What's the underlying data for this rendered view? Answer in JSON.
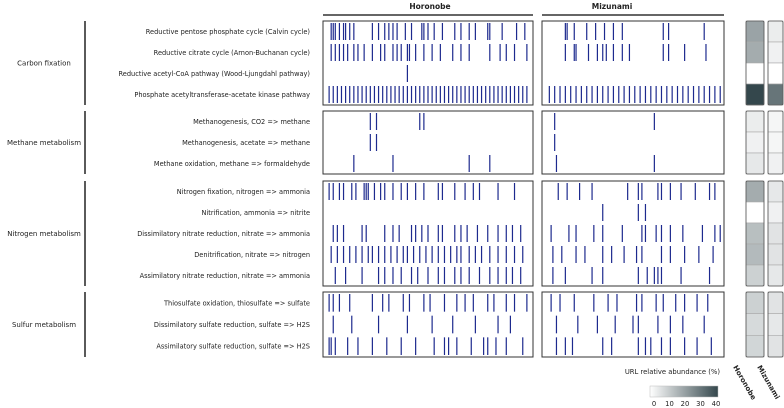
{
  "chart_data": {
    "type": "heatmap",
    "sites": [
      "Horonobe",
      "Mizunami"
    ],
    "groups": [
      {
        "name": "Carbon fixation",
        "rows": [
          {
            "label": "Reductive pentose phosphate cycle (Calvin cycle)",
            "Horonobe": [
              3,
              4,
              5,
              7,
              9,
              10,
              12,
              14,
              23,
              26,
              29,
              31,
              33,
              35,
              39,
              42,
              47,
              48,
              50,
              53,
              57,
              63,
              66,
              70,
              73,
              79,
              80,
              86,
              93,
              97
            ],
            "Mizunami": [
              12,
              13,
              17,
              24,
              29,
              34,
              39,
              44,
              67,
              70,
              90
            ]
          },
          {
            "label": "Reductive citrate cycle (Arnon-Buchanan cycle)",
            "Horonobe": [
              3,
              5,
              7,
              9,
              11,
              14,
              16,
              19,
              23,
              27,
              29,
              33,
              35,
              37,
              40,
              41,
              44,
              48,
              52,
              56,
              62,
              66,
              70,
              80,
              85,
              88,
              92,
              98
            ],
            "Mizunami": [
              12,
              17,
              18,
              25,
              30,
              33,
              35,
              39,
              44,
              48,
              67,
              70,
              79,
              91
            ]
          },
          {
            "label": "Reductive acetyl-CoA pathway (Wood-Ljungdahl pathway)",
            "Horonobe": [
              40
            ],
            "Mizunami": []
          },
          {
            "label": "Phosphate acetyltransferase-acetate kinase pathway",
            "Horonobe": [
              2,
              4,
              6,
              8,
              10,
              12,
              14,
              16,
              18,
              20,
              22,
              24,
              26,
              28,
              30,
              32,
              34,
              36,
              38,
              40,
              42,
              44,
              46,
              48,
              50,
              52,
              54,
              56,
              58,
              60,
              62,
              64,
              66,
              68,
              70,
              72,
              74,
              76,
              78,
              80,
              82,
              84,
              86,
              88,
              90,
              92,
              94,
              96,
              98
            ],
            "Mizunami": [
              3,
              6,
              9,
              12,
              15,
              18,
              21,
              24,
              27,
              30,
              33,
              36,
              39,
              42,
              45,
              48,
              51,
              54,
              57,
              60,
              63,
              66,
              69,
              72,
              75,
              78,
              81,
              84,
              87,
              90,
              93,
              96,
              99
            ]
          }
        ]
      },
      {
        "name": "Methane metabolism",
        "rows": [
          {
            "label": "Methanogenesis, CO2 => methane",
            "Horonobe": [
              22,
              25,
              46,
              48
            ],
            "Mizunami": [
              6,
              62
            ]
          },
          {
            "label": "Methanogenesis, acetate => methane",
            "Horonobe": [
              22,
              25
            ],
            "Mizunami": [
              6
            ]
          },
          {
            "label": "Methane oxidation, methane => formaldehyde",
            "Horonobe": [
              14,
              33,
              70,
              80
            ],
            "Mizunami": [
              7,
              62
            ]
          }
        ]
      },
      {
        "name": "Nitrogen metabolism",
        "rows": [
          {
            "label": "Nitrogen fixation, nitrogen => ammonia",
            "Horonobe": [
              2,
              4,
              7,
              9,
              13,
              15,
              19,
              20,
              21,
              24,
              27,
              29,
              33,
              37,
              40,
              44,
              48,
              55,
              57,
              63,
              68,
              72,
              75,
              84,
              92
            ],
            "Mizunami": [
              8,
              13,
              20,
              27,
              47,
              53,
              55,
              64,
              66,
              71,
              77,
              85,
              93,
              96
            ]
          },
          {
            "label": "Nitrification, ammonia => nitrite",
            "Horonobe": [],
            "Mizunami": [
              33,
              53,
              57
            ]
          },
          {
            "label": "Dissimilatory nitrate reduction, nitrate => ammonia",
            "Horonobe": [
              4,
              6,
              9,
              18,
              20,
              29,
              33,
              36,
              42,
              44,
              47,
              50,
              55,
              57,
              63,
              66,
              69,
              74,
              79,
              84,
              88,
              91,
              95
            ],
            "Mizunami": [
              4,
              14,
              18,
              28,
              33,
              44,
              55,
              57,
              63,
              66,
              71,
              78,
              89,
              96,
              99
            ]
          },
          {
            "label": "Denitrification, nitrate => nitrogen",
            "Horonobe": [
              3,
              6,
              9,
              12,
              15,
              18,
              21,
              23,
              26,
              29,
              32,
              35,
              38,
              40,
              43,
              46,
              49,
              52,
              55,
              58,
              61,
              64,
              66,
              70,
              73,
              76,
              80,
              84,
              88,
              92,
              96
            ],
            "Mizunami": [
              5,
              10,
              18,
              23,
              33,
              38,
              45,
              52,
              55,
              66,
              71,
              79,
              87,
              95
            ]
          },
          {
            "label": "Assimilatory nitrate reduction, nitrate => ammonia",
            "Horonobe": [
              5,
              10,
              18,
              26,
              29,
              33,
              37,
              42,
              45,
              50,
              55,
              58,
              63,
              66,
              70,
              75,
              80,
              84,
              88,
              91,
              95
            ],
            "Mizunami": [
              5,
              12,
              27,
              33,
              53,
              58,
              62,
              64,
              66,
              77,
              93
            ]
          }
        ]
      },
      {
        "name": "Sulfur metabolism",
        "rows": [
          {
            "label": "Thiosulfate oxidation, thiosulfate => sulfate",
            "Horonobe": [
              2,
              4,
              7,
              12,
              23,
              28,
              31,
              38,
              41,
              48,
              51,
              58,
              64,
              68,
              72,
              79,
              82,
              88,
              92,
              98
            ],
            "Mizunami": [
              4,
              9,
              17,
              28,
              36,
              41,
              52,
              55,
              63,
              67,
              74,
              79,
              86,
              92
            ]
          },
          {
            "label": "Dissimilatory sulfate reduction, sulfate => H2S",
            "Horonobe": [
              4,
              13,
              26,
              40,
              52,
              62,
              73,
              84,
              90
            ],
            "Mizunami": [
              7,
              19,
              30,
              40,
              50,
              53,
              64,
              71,
              78,
              90
            ]
          },
          {
            "label": "Assimilatory sulfate reduction, sulfate => H2S",
            "Horonobe": [
              2,
              3,
              5,
              11,
              16,
              23,
              30,
              37,
              44,
              53,
              58,
              60,
              64,
              71,
              77,
              79,
              83,
              88,
              96
            ],
            "Mizunami": [
              7,
              12,
              16,
              33,
              38,
              53,
              57,
              60,
              66,
              71,
              79,
              86,
              94
            ]
          }
        ]
      }
    ],
    "summary": {
      "Carbon fixation": {
        "Horonobe": [
          20,
          18,
          0,
          40
        ],
        "Mizunami": [
          4,
          3,
          0,
          30
        ]
      },
      "Methane metabolism": {
        "Horonobe": [
          4,
          3,
          5
        ],
        "Mizunami": [
          2,
          2,
          3
        ]
      },
      "Nitrogen metabolism": {
        "Horonobe": [
          18,
          0,
          14,
          15,
          10
        ],
        "Mizunami": [
          5,
          3,
          6,
          6,
          5
        ]
      },
      "Sulfur metabolism": {
        "Horonobe": [
          10,
          8,
          9
        ],
        "Mizunami": [
          6,
          5,
          6
        ]
      }
    },
    "legend": {
      "title": "URL relative abundance (%)",
      "ticks": [
        "0",
        "10",
        "20",
        "30",
        "40"
      ],
      "range": [
        0,
        40
      ],
      "colors": [
        "#ffffff",
        "#34474c"
      ]
    },
    "column_labels": [
      "Horonobe",
      "Mizunami"
    ],
    "line_color": "#1d2a8e"
  }
}
